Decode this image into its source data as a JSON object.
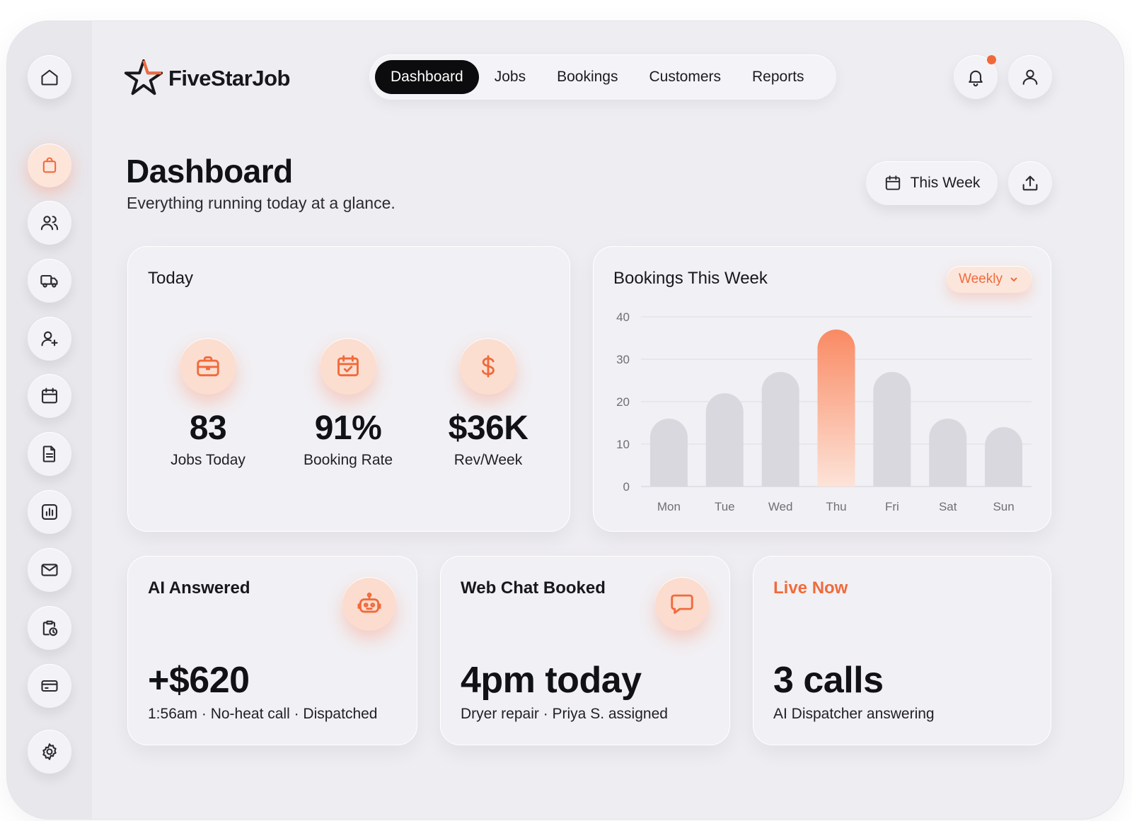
{
  "app": {
    "name": "FiveStarJob"
  },
  "nav": {
    "items": [
      "Dashboard",
      "Jobs",
      "Bookings",
      "Customers",
      "Reports"
    ],
    "active": "Dashboard"
  },
  "sidebar": {
    "icons": [
      "home-icon",
      "shopping-bag-icon",
      "users-icon",
      "truck-icon",
      "user-plus-icon",
      "calendar-icon",
      "document-icon",
      "bar-chart-icon",
      "mail-icon",
      "clipboard-clock-icon",
      "credit-card-icon",
      "gear-icon"
    ],
    "active": "shopping-bag-icon"
  },
  "header": {
    "title": "Dashboard",
    "subtitle": "Everything running today at a glance."
  },
  "actions": {
    "date_range": "This Week",
    "export_icon": "upload-icon"
  },
  "today": {
    "title": "Today",
    "stats": [
      {
        "icon": "briefcase-icon",
        "value": "83",
        "label": "Jobs Today"
      },
      {
        "icon": "calendar-check-icon",
        "value": "91%",
        "label": "Booking Rate"
      },
      {
        "icon": "dollar-icon",
        "value": "$36K",
        "label": "Rev/Week"
      }
    ]
  },
  "bookings": {
    "title": "Bookings This Week",
    "period": "Weekly"
  },
  "chart_data": {
    "type": "bar",
    "title": "Bookings This Week",
    "categories": [
      "Mon",
      "Tue",
      "Wed",
      "Thu",
      "Fri",
      "Sat",
      "Sun"
    ],
    "values": [
      16,
      22,
      27,
      37,
      27,
      16,
      14
    ],
    "yticks": [
      0,
      10,
      20,
      30,
      40
    ],
    "ylim": [
      0,
      40
    ],
    "highlight": "Thu",
    "grid": true,
    "colors": {
      "bar": "#d9d8df",
      "highlight": "#f98a63"
    }
  },
  "cards": {
    "ai": {
      "title": "AI Answered",
      "icon": "robot-icon",
      "value": "+$620",
      "detail": "1:56am · No-heat call · Dispatched"
    },
    "webchat": {
      "title": "Web Chat Booked",
      "icon": "chat-bubble-icon",
      "value": "4pm today",
      "detail": "Dryer repair · Priya S. assigned"
    },
    "live": {
      "title": "Live Now",
      "value": "3 calls",
      "detail": "AI Dispatcher answering"
    }
  },
  "colors": {
    "accent": "#f06a3c",
    "background": "#eeedf1",
    "card": "#f1f0f4",
    "nav_active": "#0c0c0e"
  }
}
